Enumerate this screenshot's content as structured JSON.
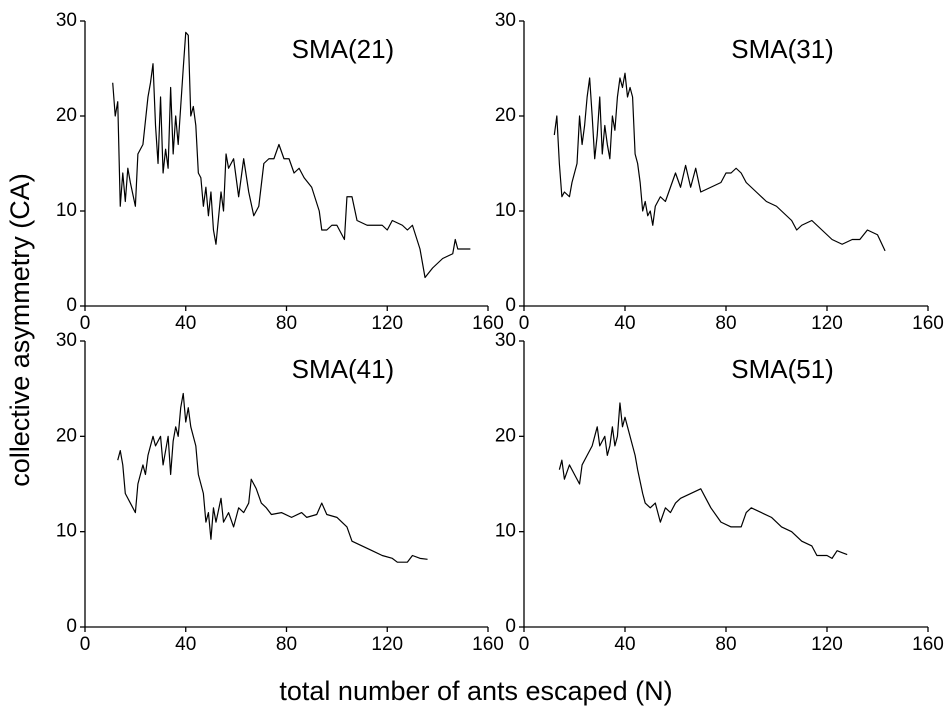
{
  "ylabel": "collective asymmetry (CA)",
  "xlabel": "total number of ants escaped (N)",
  "chart_data": [
    {
      "type": "line",
      "title": "SMA(21)",
      "color": "#000000",
      "xlim": [
        0,
        160
      ],
      "ylim": [
        0,
        30
      ],
      "xticks": [
        0,
        40,
        80,
        120,
        160
      ],
      "yticks": [
        0,
        10,
        20,
        30
      ],
      "x": [
        11,
        12,
        13,
        14,
        15,
        16,
        17,
        18,
        20,
        21,
        23,
        25,
        26,
        27,
        28,
        29,
        30,
        31,
        32,
        33,
        34,
        35,
        36,
        37,
        38,
        39,
        40,
        41,
        42,
        43,
        44,
        45,
        46,
        47,
        48,
        49,
        50,
        51,
        52,
        54,
        55,
        56,
        57,
        59,
        61,
        63,
        65,
        67,
        69,
        71,
        73,
        75,
        77,
        79,
        81,
        83,
        85,
        87,
        90,
        93,
        94,
        96,
        98,
        100,
        103,
        104,
        106,
        108,
        112,
        118,
        120,
        122,
        126,
        128,
        130,
        133,
        135,
        138,
        142,
        146,
        147,
        148,
        153
      ],
      "values": [
        23.5,
        20,
        21.5,
        10.5,
        14,
        11,
        14.5,
        13,
        10.5,
        16,
        17,
        22,
        23.5,
        25.5,
        19,
        15,
        22,
        14,
        16.5,
        14.5,
        23,
        16,
        20,
        17,
        21,
        25,
        28.8,
        28.5,
        20,
        21,
        19,
        14,
        13.5,
        10.5,
        12.5,
        9.5,
        12,
        8,
        6.5,
        12,
        10,
        16,
        14.5,
        15.5,
        11.5,
        15.5,
        12,
        9.5,
        10.5,
        15,
        15.5,
        15.5,
        17,
        15.5,
        15.5,
        14,
        14.5,
        13.5,
        12.5,
        10,
        8,
        8,
        8.5,
        8.5,
        7,
        11.5,
        11.5,
        9,
        8.5,
        8.5,
        8,
        9,
        8.5,
        8,
        8.5,
        6,
        3,
        4,
        5,
        5.5,
        7,
        6,
        6
      ]
    },
    {
      "type": "line",
      "title": "SMA(31)",
      "color": "#000000",
      "xlim": [
        0,
        160
      ],
      "ylim": [
        0,
        30
      ],
      "xticks": [
        0,
        40,
        80,
        120,
        160
      ],
      "yticks": [
        0,
        10,
        20,
        30
      ],
      "x": [
        12,
        13,
        14,
        15,
        16,
        18,
        19,
        21,
        22,
        23,
        24,
        25,
        26,
        27,
        28,
        29,
        30,
        31,
        32,
        33,
        34,
        35,
        36,
        37,
        38,
        39,
        40,
        41,
        42,
        43,
        44,
        45,
        46,
        47,
        48,
        49,
        50,
        51,
        52,
        54,
        56,
        58,
        60,
        62,
        64,
        66,
        68,
        70,
        74,
        78,
        80,
        82,
        84,
        86,
        88,
        92,
        96,
        100,
        102,
        106,
        108,
        110,
        114,
        118,
        122,
        126,
        130,
        133,
        136,
        140,
        143
      ],
      "values": [
        18,
        20,
        15,
        11.5,
        12,
        11.5,
        13,
        15,
        20,
        17,
        19,
        22,
        24,
        20,
        15.5,
        18,
        22,
        16,
        19,
        17,
        15.5,
        20,
        18.5,
        22,
        24,
        23,
        24.5,
        22,
        23,
        22,
        16,
        15,
        13,
        10,
        11,
        9.5,
        10,
        8.5,
        10.5,
        11.5,
        11,
        12.5,
        14,
        12.5,
        14.8,
        12.5,
        14.5,
        12,
        12.5,
        13,
        14,
        14,
        14.5,
        14,
        13,
        12,
        11,
        10.5,
        10,
        9,
        8,
        8.5,
        9,
        8,
        7,
        6.5,
        7,
        7,
        8,
        7.5,
        5.8
      ]
    },
    {
      "type": "line",
      "title": "SMA(41)",
      "color": "#000000",
      "xlim": [
        0,
        160
      ],
      "ylim": [
        0,
        30
      ],
      "xticks": [
        0,
        40,
        80,
        120,
        160
      ],
      "yticks": [
        0,
        10,
        20,
        30
      ],
      "x": [
        13,
        14,
        15,
        16,
        18,
        20,
        21,
        23,
        24,
        25,
        27,
        28,
        30,
        31,
        33,
        34,
        35,
        36,
        37,
        38,
        39,
        40,
        41,
        42,
        44,
        45,
        47,
        48,
        49,
        50,
        51,
        52,
        54,
        55,
        57,
        59,
        61,
        63,
        65,
        66,
        68,
        70,
        72,
        74,
        78,
        82,
        86,
        88,
        92,
        94,
        96,
        100,
        104,
        106,
        110,
        114,
        118,
        122,
        124,
        128,
        130,
        133,
        136
      ],
      "values": [
        17.5,
        18.5,
        17,
        14,
        13,
        12,
        15,
        17,
        16,
        18,
        20,
        19,
        20,
        17,
        20,
        16,
        19.5,
        21,
        20,
        23,
        24.5,
        21.5,
        23,
        21,
        19,
        16,
        14,
        11,
        12,
        9.2,
        12.5,
        11,
        13.5,
        11,
        12,
        10.5,
        12.5,
        12,
        13,
        15.5,
        14.5,
        13,
        12.5,
        11.8,
        12,
        11.5,
        12,
        11.5,
        11.8,
        13,
        11.8,
        11.5,
        10.5,
        9,
        8.5,
        8,
        7.5,
        7.2,
        6.8,
        6.8,
        7.5,
        7.2,
        7.1
      ]
    },
    {
      "type": "line",
      "title": "SMA(51)",
      "color": "#000000",
      "xlim": [
        0,
        160
      ],
      "ylim": [
        0,
        30
      ],
      "xticks": [
        0,
        40,
        80,
        120,
        160
      ],
      "yticks": [
        0,
        10,
        20,
        30
      ],
      "x": [
        14,
        15,
        16,
        18,
        20,
        22,
        23,
        25,
        27,
        28,
        29,
        30,
        32,
        33,
        34,
        35,
        36,
        37,
        38,
        39,
        40,
        41,
        43,
        44,
        45,
        47,
        48,
        50,
        52,
        54,
        56,
        58,
        60,
        62,
        66,
        70,
        72,
        74,
        78,
        82,
        86,
        88,
        90,
        94,
        98,
        102,
        106,
        110,
        114,
        116,
        120,
        122,
        124,
        126,
        128
      ],
      "values": [
        16.5,
        17.5,
        15.5,
        17,
        16,
        15,
        17,
        18,
        19,
        20,
        21,
        19,
        20,
        18,
        19,
        21,
        19,
        20,
        23.5,
        21,
        22,
        21,
        19,
        18,
        16.5,
        14,
        13,
        12.5,
        13,
        11,
        12.5,
        12,
        13,
        13.5,
        14,
        14.5,
        13.5,
        12.5,
        11,
        10.5,
        10.5,
        12,
        12.5,
        12,
        11.5,
        10.5,
        10,
        9,
        8.5,
        7.5,
        7.5,
        7.2,
        8,
        7.8,
        7.6
      ]
    }
  ]
}
